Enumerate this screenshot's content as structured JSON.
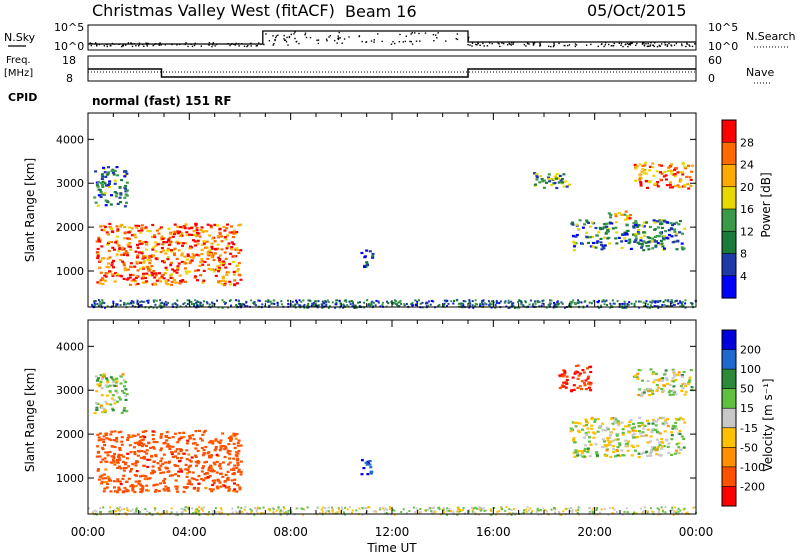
{
  "header": {
    "title": "Christmas Valley West (fitACF)",
    "beam": "Beam 16",
    "date": "05/Oct/2015"
  },
  "strip_nsky": {
    "label": "N.Sky",
    "right_label": "N.Search",
    "left_ticks": [
      "10^5",
      "10^0"
    ],
    "right_ticks": [
      "10^5",
      "10^0"
    ]
  },
  "strip_freq": {
    "label_line1": "Freq.",
    "label_line2": "[MHz]",
    "right_label": "Nave",
    "left_ticks": [
      "18",
      "8"
    ],
    "right_ticks": [
      "60",
      "0"
    ]
  },
  "cpid": {
    "label": "CPID",
    "value": "normal (fast) 151 RF"
  },
  "power_panel": {
    "ylabel": "Slant Range [km]",
    "colorbar_label": "Power [dB]",
    "colorbar_ticks": [
      "28",
      "24",
      "20",
      "16",
      "12",
      "8",
      "4"
    ],
    "colorbar_colors": [
      "#ff0000",
      "#ff6a00",
      "#ffaa00",
      "#e8d800",
      "#3a9a4a",
      "#1a7a3a",
      "#1e3aa8",
      "#0000ff"
    ]
  },
  "velocity_panel": {
    "ylabel": "Slant Range [km]",
    "colorbar_label": "Velocity [m s⁻¹]",
    "colorbar_ticks": [
      "200",
      "100",
      "50",
      "15",
      "-15",
      "-50",
      "-100",
      "-200"
    ],
    "colorbar_colors": [
      "#0000dd",
      "#1e6ad0",
      "#2a8a3a",
      "#60c040",
      "#c8c8c8",
      "#ffc000",
      "#ff9000",
      "#ff5000",
      "#ff0000"
    ]
  },
  "xaxis": {
    "label": "Time UT",
    "ticks": [
      "00:00",
      "04:00",
      "08:00",
      "12:00",
      "16:00",
      "20:00",
      "00:00"
    ]
  },
  "chart_data": {
    "type": "heatmap",
    "title": "Christmas Valley West (fitACF)",
    "subtitle": "Beam 16",
    "date": "05/Oct/2015",
    "xlabel": "Time UT",
    "ylabel": "Slant Range [km]",
    "xlim": [
      0,
      24
    ],
    "ylim": [
      180,
      4600
    ],
    "yticks": [
      1000,
      2000,
      3000,
      4000
    ],
    "frequency_mhz": [
      {
        "from": 0,
        "to": 2.9,
        "value": 14
      },
      {
        "from": 2.9,
        "to": 15.0,
        "value": 10
      },
      {
        "from": 15.0,
        "to": 24,
        "value": 14
      }
    ],
    "nsky_raised": {
      "from": 6.9,
      "to": 15.0
    },
    "power_regions": [
      {
        "t_start": 0.3,
        "t_end": 6.0,
        "r_start": 700,
        "r_end": 2100,
        "peak_db": 28
      },
      {
        "t_start": 0.2,
        "t_end": 1.5,
        "r_start": 2500,
        "r_end": 3400,
        "peak_db": 12
      },
      {
        "t_start": 17.5,
        "t_end": 19.0,
        "r_start": 2900,
        "r_end": 3300,
        "peak_db": 14
      },
      {
        "t_start": 20.5,
        "t_end": 21.5,
        "r_start": 2200,
        "r_end": 2400,
        "peak_db": 24
      },
      {
        "t_start": 21.5,
        "t_end": 23.8,
        "r_start": 2900,
        "r_end": 3500,
        "peak_db": 26
      },
      {
        "t_start": 10.7,
        "t_end": 11.2,
        "r_start": 1100,
        "r_end": 1500,
        "peak_db": 8
      },
      {
        "t_start": 19.0,
        "t_end": 23.5,
        "r_start": 1500,
        "r_end": 2200,
        "peak_db": 12
      }
    ],
    "velocity_regions": [
      {
        "t_start": 0.3,
        "t_end": 6.0,
        "r_start": 700,
        "r_end": 2100,
        "typical_ms": -150
      },
      {
        "t_start": 0.2,
        "t_end": 1.5,
        "r_start": 2500,
        "r_end": 3400,
        "typical_ms": 0
      },
      {
        "t_start": 18.5,
        "t_end": 19.8,
        "r_start": 3000,
        "r_end": 3600,
        "typical_ms": -200
      },
      {
        "t_start": 21.5,
        "t_end": 23.8,
        "r_start": 2900,
        "r_end": 3500,
        "typical_ms": 0
      },
      {
        "t_start": 10.7,
        "t_end": 11.2,
        "r_start": 1100,
        "r_end": 1500,
        "typical_ms": 200
      },
      {
        "t_start": 19.0,
        "t_end": 23.5,
        "r_start": 1500,
        "r_end": 2400,
        "typical_ms": 0
      }
    ]
  }
}
